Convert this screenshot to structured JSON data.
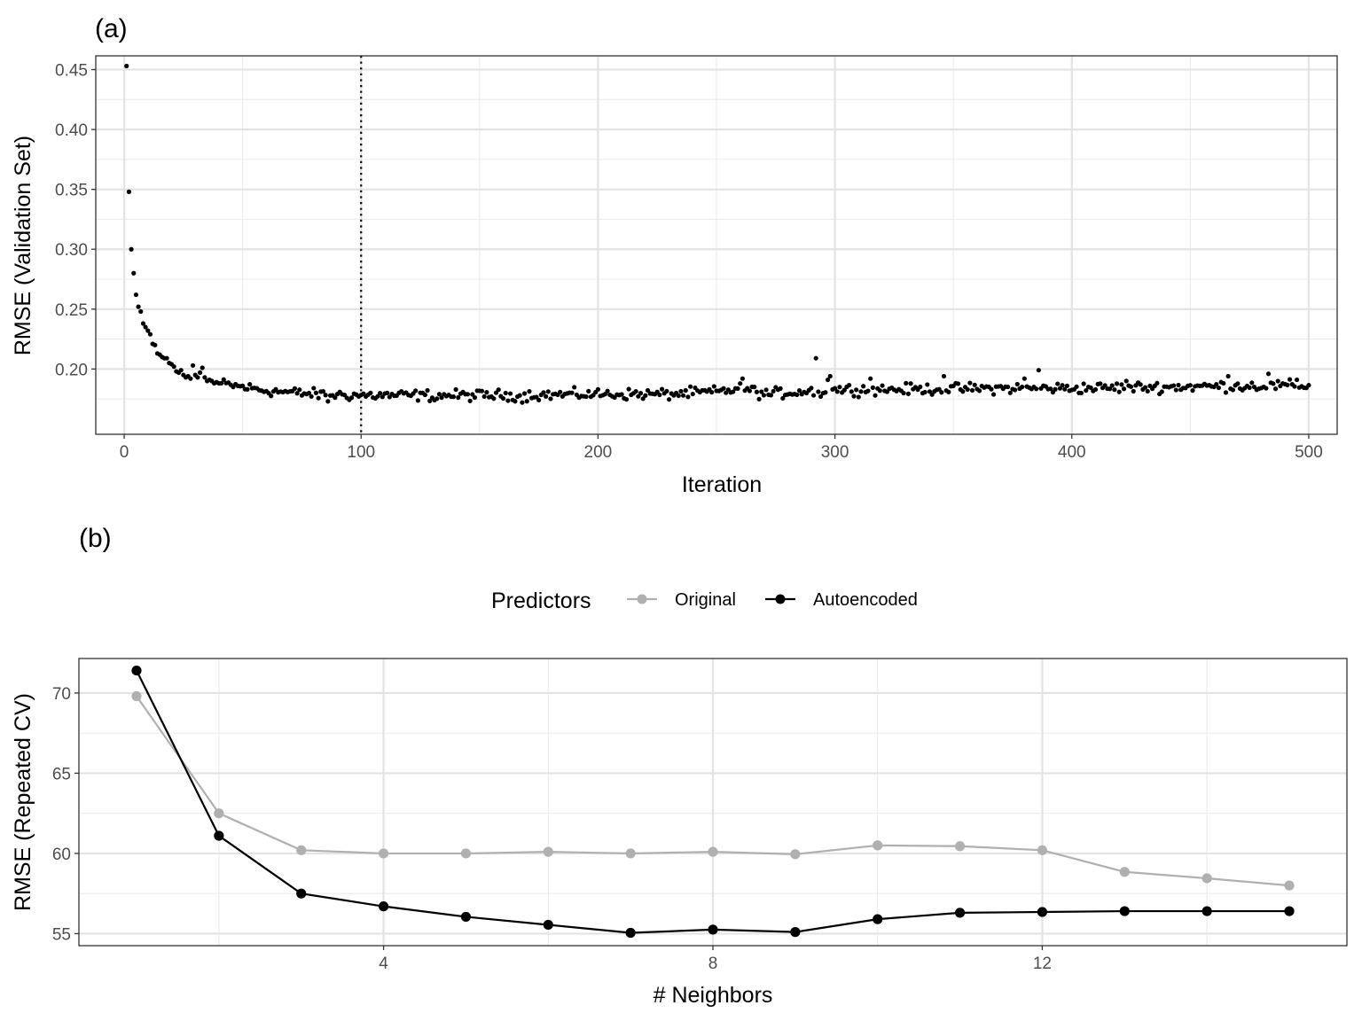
{
  "chart_data": [
    {
      "type": "scatter",
      "panel_label": "(a)",
      "xlabel": "Iteration",
      "ylabel": "RMSE (Validation Set)",
      "xlim": [
        -12,
        512
      ],
      "ylim": [
        0.1455,
        0.4615
      ],
      "x_ticks": [
        0,
        100,
        200,
        300,
        400,
        500
      ],
      "y_ticks": [
        0.2,
        0.25,
        0.3,
        0.35,
        0.4,
        0.45
      ],
      "x_tick_labels": [
        "0",
        "100",
        "200",
        "300",
        "400",
        "500"
      ],
      "y_tick_labels": [
        "0.20",
        "0.25",
        "0.30",
        "0.35",
        "0.40",
        "0.45"
      ],
      "grid": true,
      "vline": {
        "x": 100,
        "style": "dotted"
      },
      "head_points": [
        [
          1,
          0.453
        ],
        [
          2,
          0.348
        ],
        [
          3,
          0.3
        ],
        [
          4,
          0.28
        ],
        [
          5,
          0.262
        ],
        [
          6,
          0.252
        ],
        [
          7,
          0.248
        ],
        [
          8,
          0.238
        ],
        [
          9,
          0.235
        ],
        [
          10,
          0.232
        ],
        [
          11,
          0.229
        ],
        [
          12,
          0.221
        ],
        [
          13,
          0.22
        ],
        [
          14,
          0.213
        ],
        [
          15,
          0.212
        ],
        [
          16,
          0.21
        ],
        [
          17,
          0.209
        ],
        [
          18,
          0.209
        ],
        [
          19,
          0.205
        ],
        [
          20,
          0.204
        ],
        [
          21,
          0.202
        ],
        [
          22,
          0.198
        ],
        [
          23,
          0.197
        ],
        [
          24,
          0.199
        ],
        [
          25,
          0.195
        ],
        [
          26,
          0.193
        ],
        [
          27,
          0.194
        ],
        [
          28,
          0.192
        ],
        [
          29,
          0.203
        ],
        [
          30,
          0.195
        ],
        [
          31,
          0.193
        ],
        [
          32,
          0.197
        ],
        [
          33,
          0.201
        ],
        [
          34,
          0.193
        ],
        [
          35,
          0.19
        ],
        [
          36,
          0.191
        ],
        [
          37,
          0.19
        ],
        [
          38,
          0.188
        ],
        [
          39,
          0.189
        ],
        [
          40,
          0.188
        ]
      ],
      "tail_baseline": [
        [
          40,
          0.188
        ],
        [
          60,
          0.182
        ],
        [
          80,
          0.179
        ],
        [
          100,
          0.178
        ],
        [
          130,
          0.178
        ],
        [
          160,
          0.178
        ],
        [
          200,
          0.179
        ],
        [
          230,
          0.179
        ],
        [
          250,
          0.181
        ],
        [
          262,
          0.184
        ],
        [
          270,
          0.179
        ],
        [
          285,
          0.181
        ],
        [
          300,
          0.183
        ],
        [
          330,
          0.183
        ],
        [
          370,
          0.184
        ],
        [
          400,
          0.184
        ],
        [
          440,
          0.185
        ],
        [
          470,
          0.186
        ],
        [
          500,
          0.186
        ]
      ],
      "tail_outliers": [
        [
          86,
          0.173
        ],
        [
          131,
          0.174
        ],
        [
          168,
          0.172
        ],
        [
          261,
          0.192
        ],
        [
          292,
          0.209
        ],
        [
          294,
          0.177
        ],
        [
          297,
          0.191
        ],
        [
          298,
          0.194
        ],
        [
          315,
          0.192
        ],
        [
          346,
          0.194
        ],
        [
          380,
          0.192
        ],
        [
          386,
          0.199
        ],
        [
          423,
          0.19
        ],
        [
          466,
          0.194
        ],
        [
          483,
          0.196
        ],
        [
          495,
          0.191
        ]
      ]
    },
    {
      "type": "line",
      "panel_label": "(b)",
      "xlabel": "# Neighbors",
      "ylabel": "RMSE (Repeated CV)",
      "xlim": [
        0.3,
        15.7
      ],
      "ylim": [
        54.25,
        72.15
      ],
      "x_ticks": [
        4,
        8,
        12
      ],
      "y_ticks": [
        55,
        60,
        65,
        70
      ],
      "x_tick_labels": [
        "4",
        "8",
        "12"
      ],
      "y_tick_labels": [
        "55",
        "60",
        "65",
        "70"
      ],
      "grid": true,
      "legend": {
        "title": "Predictors",
        "position": "top"
      },
      "x": [
        1,
        2,
        3,
        4,
        5,
        6,
        7,
        8,
        9,
        10,
        11,
        12,
        13,
        14,
        15
      ],
      "series": [
        {
          "name": "Original",
          "color": "#b0b0b0",
          "values": [
            69.8,
            62.5,
            60.2,
            60.0,
            60.0,
            60.1,
            60.0,
            60.1,
            59.95,
            60.5,
            60.45,
            60.2,
            58.85,
            58.45,
            58.0
          ]
        },
        {
          "name": "Autoencoded",
          "color": "#000000",
          "values": [
            71.4,
            61.1,
            57.5,
            56.7,
            56.05,
            55.55,
            55.05,
            55.25,
            55.1,
            55.9,
            56.3,
            56.35,
            56.4,
            56.4,
            56.4
          ]
        }
      ]
    }
  ]
}
